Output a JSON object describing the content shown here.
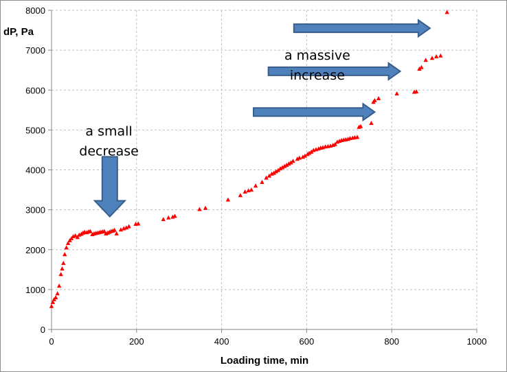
{
  "chart_data": {
    "type": "scatter",
    "xlabel": "Loading time, min",
    "ylabel": "dP, Pa",
    "xlim": [
      0,
      1000
    ],
    "ylim": [
      0,
      8000
    ],
    "x_ticks": [
      "0",
      "200",
      "400",
      "600",
      "800",
      "1000"
    ],
    "y_ticks": [
      "0",
      "1000",
      "2000",
      "3000",
      "4000",
      "5000",
      "6000",
      "7000",
      "8000"
    ],
    "grid": "dashed",
    "marker": "triangle",
    "series_color": "#ff0000",
    "points": [
      [
        0,
        580
      ],
      [
        3,
        680
      ],
      [
        6,
        750
      ],
      [
        10,
        800
      ],
      [
        14,
        900
      ],
      [
        18,
        1090
      ],
      [
        22,
        1380
      ],
      [
        25,
        1520
      ],
      [
        28,
        1660
      ],
      [
        31,
        1880
      ],
      [
        35,
        2050
      ],
      [
        39,
        2160
      ],
      [
        43,
        2230
      ],
      [
        47,
        2280
      ],
      [
        51,
        2330
      ],
      [
        56,
        2350
      ],
      [
        61,
        2310
      ],
      [
        65,
        2370
      ],
      [
        70,
        2390
      ],
      [
        74,
        2420
      ],
      [
        78,
        2440
      ],
      [
        83,
        2430
      ],
      [
        87,
        2450
      ],
      [
        91,
        2460
      ],
      [
        96,
        2380
      ],
      [
        100,
        2400
      ],
      [
        104,
        2410
      ],
      [
        108,
        2420
      ],
      [
        112,
        2430
      ],
      [
        116,
        2440
      ],
      [
        120,
        2450
      ],
      [
        124,
        2460
      ],
      [
        128,
        2400
      ],
      [
        132,
        2420
      ],
      [
        136,
        2440
      ],
      [
        140,
        2460
      ],
      [
        144,
        2470
      ],
      [
        148,
        2490
      ],
      [
        153,
        2400
      ],
      [
        163,
        2500
      ],
      [
        170,
        2530
      ],
      [
        176,
        2550
      ],
      [
        182,
        2580
      ],
      [
        198,
        2640
      ],
      [
        204,
        2650
      ],
      [
        263,
        2760
      ],
      [
        275,
        2800
      ],
      [
        285,
        2820
      ],
      [
        290,
        2840
      ],
      [
        348,
        3010
      ],
      [
        362,
        3040
      ],
      [
        415,
        3250
      ],
      [
        444,
        3360
      ],
      [
        455,
        3450
      ],
      [
        463,
        3480
      ],
      [
        470,
        3500
      ],
      [
        480,
        3600
      ],
      [
        495,
        3690
      ],
      [
        505,
        3800
      ],
      [
        512,
        3850
      ],
      [
        518,
        3900
      ],
      [
        523,
        3920
      ],
      [
        528,
        3960
      ],
      [
        533,
        3990
      ],
      [
        538,
        4030
      ],
      [
        543,
        4060
      ],
      [
        548,
        4090
      ],
      [
        553,
        4120
      ],
      [
        558,
        4150
      ],
      [
        563,
        4180
      ],
      [
        568,
        4220
      ],
      [
        578,
        4270
      ],
      [
        583,
        4300
      ],
      [
        591,
        4320
      ],
      [
        596,
        4350
      ],
      [
        602,
        4390
      ],
      [
        606,
        4420
      ],
      [
        611,
        4450
      ],
      [
        616,
        4490
      ],
      [
        622,
        4510
      ],
      [
        628,
        4530
      ],
      [
        633,
        4550
      ],
      [
        638,
        4560
      ],
      [
        644,
        4580
      ],
      [
        650,
        4590
      ],
      [
        656,
        4600
      ],
      [
        662,
        4620
      ],
      [
        667,
        4640
      ],
      [
        672,
        4700
      ],
      [
        677,
        4720
      ],
      [
        682,
        4740
      ],
      [
        687,
        4750
      ],
      [
        692,
        4760
      ],
      [
        697,
        4770
      ],
      [
        702,
        4790
      ],
      [
        708,
        4800
      ],
      [
        713,
        4810
      ],
      [
        719,
        4820
      ],
      [
        723,
        5070
      ],
      [
        727,
        5090
      ],
      [
        752,
        5170
      ],
      [
        757,
        5700
      ],
      [
        760,
        5740
      ],
      [
        769,
        5790
      ],
      [
        812,
        5910
      ],
      [
        853,
        5950
      ],
      [
        858,
        5960
      ],
      [
        865,
        6530
      ],
      [
        870,
        6570
      ],
      [
        880,
        6750
      ],
      [
        895,
        6800
      ],
      [
        905,
        6840
      ],
      [
        915,
        6860
      ],
      [
        930,
        7950
      ]
    ],
    "annotations": [
      {
        "lines": [
          "a small",
          "decrease"
        ],
        "x": 135,
        "y": 4860
      },
      {
        "lines": [
          "a massive",
          "increase"
        ],
        "x": 625,
        "y": 6760
      }
    ],
    "arrows": [
      {
        "direction": "down",
        "x": 137,
        "y_from": 4330,
        "y_to": 2830
      },
      {
        "direction": "right",
        "x_from": 570,
        "x_to": 890,
        "y": 7550
      },
      {
        "direction": "right",
        "x_from": 510,
        "x_to": 820,
        "y": 6470
      },
      {
        "direction": "right",
        "x_from": 475,
        "x_to": 760,
        "y": 5450
      }
    ],
    "colors": {
      "arrow_fill": "#4f81bd",
      "arrow_stroke": "#385d8a",
      "grid": "#bfbfbf",
      "axis": "#868686"
    }
  }
}
